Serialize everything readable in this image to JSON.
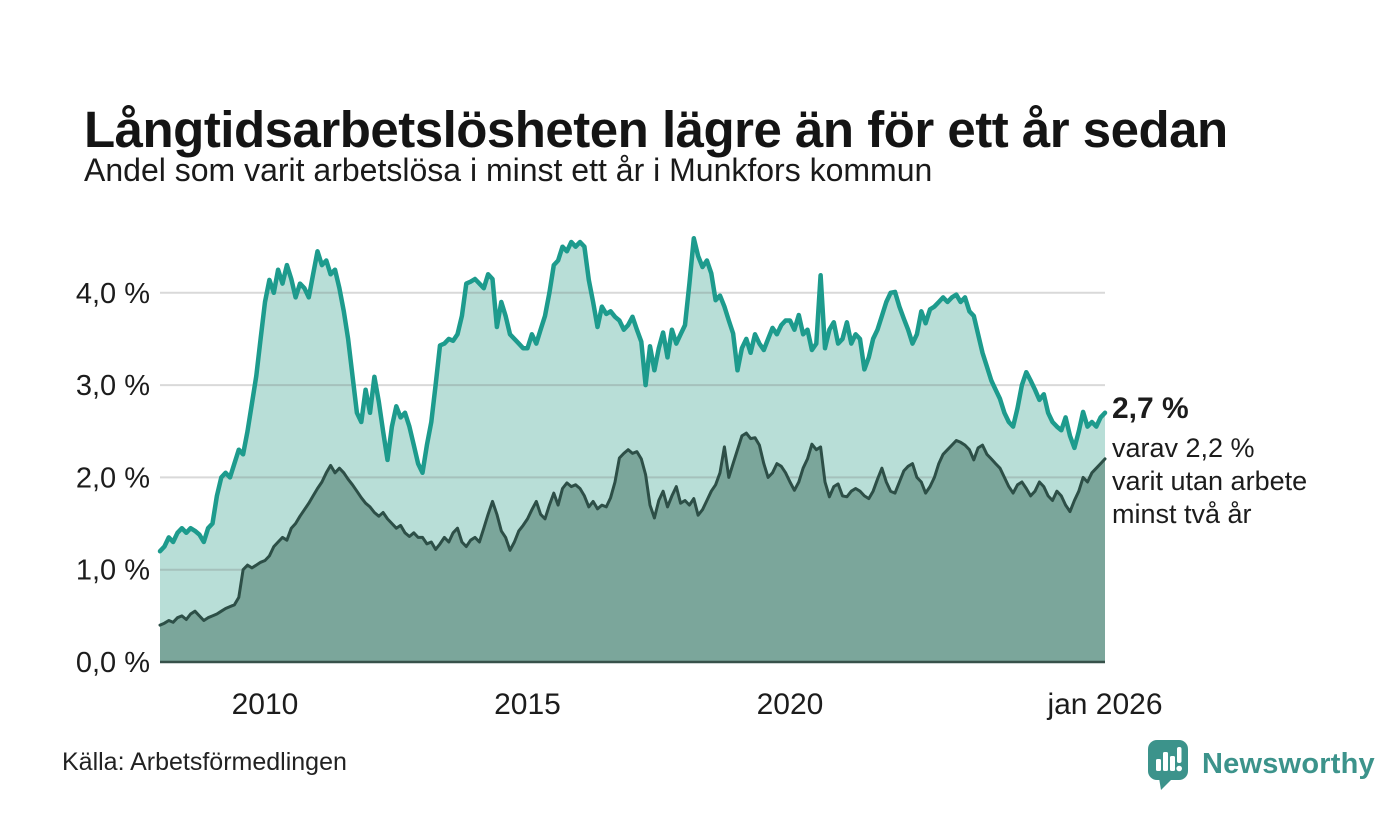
{
  "header": {
    "title": "Långtidsarbetslösheten lägre än för ett år sedan",
    "subtitle": "Andel som varit arbetslösa i minst ett år i Munkfors kommun"
  },
  "annotation": {
    "headline": "2,7 %",
    "lines": [
      "varav 2,2 %",
      "varit utan arbete",
      "minst två år"
    ]
  },
  "footer": {
    "source": "Källa: Arbetsförmedlingen",
    "brand": "Newsworthy"
  },
  "colors": {
    "teal_stroke": "#1d9b8d",
    "teal_fill": "#b8ded7",
    "dark_stroke": "#2d4f47",
    "dark_fill": "#7ba69b",
    "gridline": "rgba(120,120,120,0.28)",
    "axis_text": "#1c1c1c",
    "baseline": "#37514a",
    "brand_teal": "#3c938b"
  },
  "chart_data": {
    "type": "area",
    "title": "Långtidsarbetslösheten lägre än för ett år sedan",
    "subtitle": "Andel som varit arbetslösa i minst ett år i Munkfors kommun",
    "unit": "%",
    "x_start": "2008-01",
    "x_end": "2026-01",
    "interval": "monthly",
    "ylim": [
      0,
      4.7
    ],
    "grid": true,
    "legend": "none",
    "yticks": [
      {
        "label": "0,0 %",
        "value": 0
      },
      {
        "label": "1,0 %",
        "value": 1
      },
      {
        "label": "2,0 %",
        "value": 2
      },
      {
        "label": "3,0 %",
        "value": 3
      },
      {
        "label": "4,0 %",
        "value": 4
      }
    ],
    "xticks": [
      {
        "label": "2010",
        "year": 2010
      },
      {
        "label": "2015",
        "year": 2015
      },
      {
        "label": "2020",
        "year": 2020
      },
      {
        "label": "jan 2026",
        "year": 2026
      }
    ],
    "series": [
      {
        "name": "Arbetslösa minst ett år",
        "role": "total",
        "end_label": "2,7 %",
        "values": [
          1.2,
          1.25,
          1.35,
          1.3,
          1.4,
          1.45,
          1.4,
          1.45,
          1.42,
          1.38,
          1.3,
          1.45,
          1.5,
          1.8,
          2.0,
          2.05,
          2.0,
          2.15,
          2.3,
          2.25,
          2.5,
          2.8,
          3.1,
          3.5,
          3.9,
          4.14,
          4.0,
          4.25,
          4.1,
          4.3,
          4.15,
          3.95,
          4.1,
          4.05,
          3.95,
          4.2,
          4.45,
          4.3,
          4.35,
          4.2,
          4.25,
          4.05,
          3.8,
          3.5,
          3.1,
          2.7,
          2.6,
          2.95,
          2.7,
          3.09,
          2.82,
          2.5,
          2.19,
          2.55,
          2.77,
          2.65,
          2.7,
          2.55,
          2.35,
          2.15,
          2.05,
          2.35,
          2.6,
          3.0,
          3.43,
          3.45,
          3.5,
          3.48,
          3.55,
          3.75,
          4.1,
          4.12,
          4.15,
          4.1,
          4.05,
          4.2,
          4.15,
          3.63,
          3.9,
          3.75,
          3.55,
          3.5,
          3.45,
          3.4,
          3.4,
          3.55,
          3.45,
          3.6,
          3.75,
          4.0,
          4.3,
          4.35,
          4.5,
          4.45,
          4.55,
          4.5,
          4.55,
          4.5,
          4.14,
          3.9,
          3.63,
          3.85,
          3.77,
          3.8,
          3.74,
          3.7,
          3.6,
          3.65,
          3.74,
          3.6,
          3.47,
          3.0,
          3.42,
          3.16,
          3.4,
          3.57,
          3.3,
          3.6,
          3.45,
          3.55,
          3.65,
          4.1,
          4.59,
          4.4,
          4.28,
          4.35,
          4.21,
          3.92,
          3.97,
          3.85,
          3.7,
          3.56,
          3.16,
          3.4,
          3.5,
          3.35,
          3.55,
          3.45,
          3.38,
          3.5,
          3.62,
          3.55,
          3.65,
          3.7,
          3.7,
          3.6,
          3.76,
          3.55,
          3.6,
          3.38,
          3.45,
          4.19,
          3.4,
          3.6,
          3.68,
          3.45,
          3.5,
          3.68,
          3.45,
          3.55,
          3.5,
          3.17,
          3.3,
          3.5,
          3.6,
          3.75,
          3.9,
          4.0,
          4.01,
          3.85,
          3.72,
          3.6,
          3.45,
          3.55,
          3.8,
          3.67,
          3.82,
          3.85,
          3.9,
          3.95,
          3.9,
          3.95,
          3.98,
          3.9,
          3.95,
          3.8,
          3.75,
          3.55,
          3.35,
          3.2,
          3.05,
          2.95,
          2.85,
          2.7,
          2.6,
          2.55,
          2.75,
          3.0,
          3.14,
          3.05,
          2.95,
          2.84,
          2.9,
          2.7,
          2.6,
          2.55,
          2.51,
          2.65,
          2.45,
          2.32,
          2.5,
          2.71,
          2.55,
          2.6,
          2.55,
          2.65,
          2.7
        ]
      },
      {
        "name": "Varav utan arbete minst två år",
        "role": "subset",
        "end_label": "2,2 %",
        "values": [
          0.4,
          0.42,
          0.45,
          0.43,
          0.48,
          0.5,
          0.46,
          0.52,
          0.55,
          0.5,
          0.45,
          0.48,
          0.5,
          0.52,
          0.55,
          0.58,
          0.6,
          0.62,
          0.7,
          1.0,
          1.05,
          1.02,
          1.05,
          1.08,
          1.1,
          1.15,
          1.25,
          1.3,
          1.35,
          1.32,
          1.45,
          1.5,
          1.58,
          1.65,
          1.72,
          1.8,
          1.88,
          1.95,
          2.05,
          2.13,
          2.05,
          2.1,
          2.05,
          1.98,
          1.92,
          1.85,
          1.78,
          1.72,
          1.68,
          1.62,
          1.58,
          1.62,
          1.55,
          1.5,
          1.45,
          1.48,
          1.4,
          1.36,
          1.4,
          1.35,
          1.35,
          1.28,
          1.3,
          1.22,
          1.28,
          1.35,
          1.3,
          1.4,
          1.45,
          1.3,
          1.25,
          1.32,
          1.35,
          1.3,
          1.45,
          1.6,
          1.74,
          1.6,
          1.42,
          1.35,
          1.21,
          1.3,
          1.42,
          1.48,
          1.55,
          1.65,
          1.74,
          1.6,
          1.55,
          1.7,
          1.83,
          1.7,
          1.88,
          1.94,
          1.9,
          1.92,
          1.88,
          1.8,
          1.68,
          1.74,
          1.66,
          1.7,
          1.68,
          1.78,
          1.95,
          2.21,
          2.26,
          2.3,
          2.26,
          2.28,
          2.2,
          2.03,
          1.7,
          1.56,
          1.75,
          1.85,
          1.68,
          1.8,
          1.9,
          1.72,
          1.75,
          1.7,
          1.77,
          1.59,
          1.65,
          1.75,
          1.85,
          1.92,
          2.05,
          2.33,
          2.0,
          2.15,
          2.3,
          2.45,
          2.48,
          2.42,
          2.43,
          2.35,
          2.15,
          2.0,
          2.05,
          2.15,
          2.12,
          2.05,
          1.95,
          1.86,
          1.95,
          2.1,
          2.2,
          2.36,
          2.3,
          2.33,
          1.95,
          1.79,
          1.9,
          1.93,
          1.8,
          1.79,
          1.85,
          1.88,
          1.85,
          1.8,
          1.77,
          1.85,
          1.98,
          2.1,
          1.95,
          1.85,
          1.83,
          1.95,
          2.07,
          2.12,
          2.15,
          2.0,
          1.95,
          1.83,
          1.9,
          2.0,
          2.15,
          2.25,
          2.3,
          2.35,
          2.4,
          2.38,
          2.35,
          2.3,
          2.19,
          2.32,
          2.35,
          2.25,
          2.2,
          2.15,
          2.1,
          2.0,
          1.9,
          1.83,
          1.92,
          1.95,
          1.88,
          1.8,
          1.85,
          1.95,
          1.9,
          1.8,
          1.75,
          1.85,
          1.8,
          1.7,
          1.63,
          1.75,
          1.85,
          2.0,
          1.95,
          2.05,
          2.1,
          2.15,
          2.2
        ]
      }
    ]
  }
}
